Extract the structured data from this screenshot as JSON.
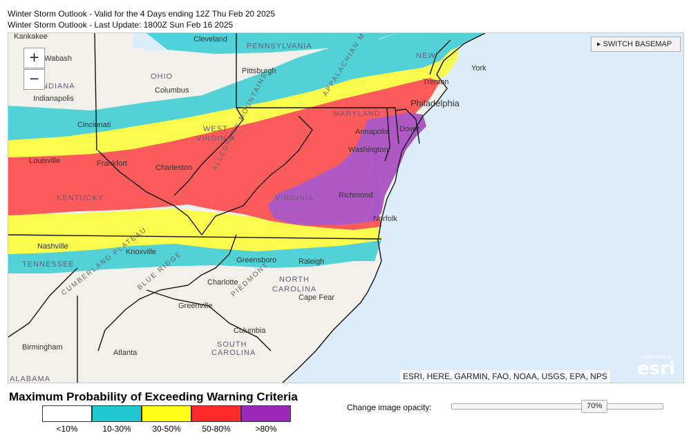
{
  "header": {
    "line1": "Winter Storm Outlook - Valid for the 4 Days ending 12Z Thu Feb 20 2025",
    "line2": "Winter Storm Outlook - Last Update: 1800Z Sun Feb 16 2025"
  },
  "map": {
    "zoom_in_label": "+",
    "zoom_out_label": "−",
    "basemap_button": "▸ SWITCH BASEMAP",
    "attribution": "ESRI, HERE, GARMIN, FAO, NOAA, USGS, EPA, NPS",
    "esri_powered": "POWERED BY",
    "esri_logo": "esri",
    "colors": {
      "water": "#dcecf8",
      "land": "#f1f0ea",
      "lt10": "#ffffff",
      "p10_30": "#1ec8d0",
      "p30_50": "#ffff1a",
      "p50_80": "#ff2a2a",
      "gt80": "#9a27b8"
    },
    "places": {
      "cleveland": "Cleveland",
      "pittsburgh": "Pittsburgh",
      "columbus": "Columbus",
      "indianapolis": "Indianapolis",
      "cincinnati": "Cincinnati",
      "louisville": "Louisville",
      "frankfort": "Frankfort",
      "charleston": "Charleston",
      "nashville": "Nashville",
      "knoxville": "Knoxville",
      "greensboro": "Greensboro",
      "raleigh": "Raleigh",
      "charlotte": "Charlotte",
      "greenville": "Greenville",
      "columbia": "Columbia",
      "atlanta": "Atlanta",
      "birmingham": "Birmingham",
      "richmond": "Richmond",
      "norfolk": "Norfolk",
      "washington": "Washington",
      "annapolis": "Annapolis",
      "dover": "Dover",
      "philadelphia": "Philadelphia",
      "new_york": "York",
      "kankakee": "Kankakee",
      "wabash": "Wabash",
      "trenton": "Trenton"
    },
    "states": {
      "pennsylvania": "PENNSYLVANIA",
      "ohio": "OHIO",
      "indiana": "INDIANA",
      "kentucky": "KENTUCKY",
      "west_virginia_1": "WEST",
      "west_virginia_2": "VIRGINIA",
      "virginia": "VIRGINIA",
      "maryland": "MARYLAND",
      "tennessee": "TENNESSEE",
      "north_carolina_1": "NORTH",
      "north_carolina_2": "CAROLINA",
      "south_carolina_1": "SOUTH",
      "south_carolina_2": "CAROLINA",
      "alabama": "ALABAMA",
      "new_jersey": "NEW"
    },
    "features": {
      "appalachian": "ALLEGHENY MOUNTAINS",
      "blue_ridge": "BLUE RIDGE",
      "piedmont": "PIEDMONT",
      "cumberland": "CUMBERLAND PLATEAU",
      "appalachian_mtns": "APPALACHIAN MOUNTAINS",
      "cape_fear": "Cape Fear"
    }
  },
  "legend": {
    "title": "Maximum Probability of Exceeding Warning Criteria",
    "items": [
      {
        "label": "<10%",
        "color": "#ffffff"
      },
      {
        "label": "10-30%",
        "color": "#1ec8d0"
      },
      {
        "label": "30-50%",
        "color": "#ffff1a"
      },
      {
        "label": "50-80%",
        "color": "#ff2a2a"
      },
      {
        "label": ">80%",
        "color": "#9a27b8"
      }
    ]
  },
  "opacity": {
    "label": "Change image opacity:",
    "value": "70%",
    "fraction": 0.7
  }
}
